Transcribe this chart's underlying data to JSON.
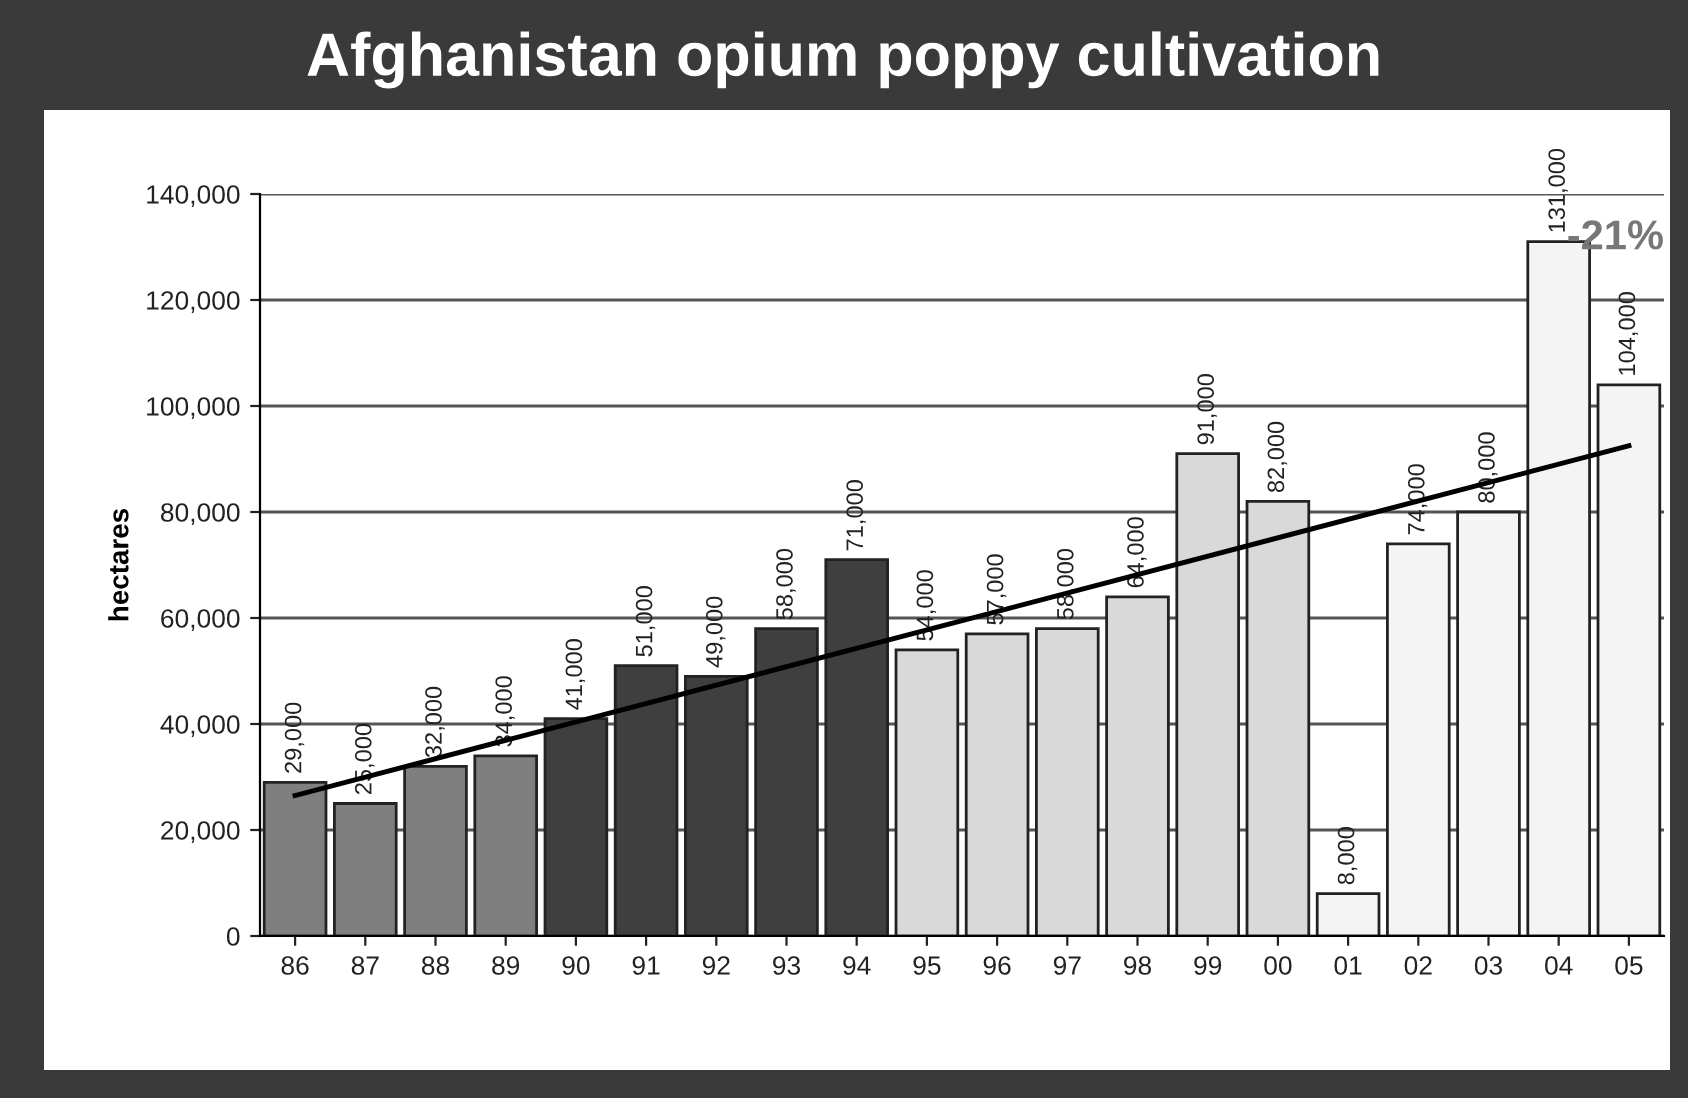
{
  "chart_data": {
    "type": "bar",
    "title": "Afghanistan opium poppy cultivation",
    "ylabel": "hectares",
    "categories": [
      "86",
      "87",
      "88",
      "89",
      "90",
      "91",
      "92",
      "93",
      "94",
      "95",
      "96",
      "97",
      "98",
      "99",
      "00",
      "01",
      "02",
      "03",
      "04",
      "05"
    ],
    "series": [
      {
        "value_labels": [
          "29,000",
          "25,000",
          "32,000",
          "34,000",
          "41,000",
          "51,000",
          "49,000",
          "58,000",
          "71,000",
          "54,000",
          "57,000",
          "58,000",
          "64,000",
          "91,000",
          "82,000",
          "8,000",
          "74,000",
          "80,000",
          "131,000",
          "104,000"
        ],
        "values": [
          29000,
          25000,
          32000,
          34000,
          41000,
          51000,
          49000,
          58000,
          71000,
          54000,
          57000,
          58000,
          64000,
          91000,
          82000,
          8000,
          74000,
          80000,
          131000,
          104000
        ],
        "colors": [
          "#7f7f7f",
          "#7f7f7f",
          "#7f7f7f",
          "#7f7f7f",
          "#3f3f3f",
          "#3f3f3f",
          "#3f3f3f",
          "#3f3f3f",
          "#3f3f3f",
          "#d9d9d9",
          "#d9d9d9",
          "#d9d9d9",
          "#d9d9d9",
          "#d9d9d9",
          "#d9d9d9",
          "#f4f4f4",
          "#f4f4f4",
          "#f4f4f4",
          "#f4f4f4",
          "#f4f4f4"
        ]
      },
      {
        "type": "line",
        "color": "#000000",
        "x": [
          "86",
          "05"
        ],
        "values": [
          26500,
          92500
        ]
      }
    ],
    "ylim": [
      0,
      140000
    ],
    "yticks": [
      0,
      {
        "value": 20000,
        "label": "20,000"
      },
      {
        "value": 40000,
        "label": "40,000"
      },
      {
        "value": 60000,
        "label": "60,000"
      },
      {
        "value": 80000,
        "label": "80,000"
      },
      {
        "value": 100000,
        "label": "100,000"
      },
      {
        "value": 120000,
        "label": "120,000"
      },
      {
        "value": 140000,
        "label": "140,000"
      }
    ],
    "grid": "y",
    "annotations": [
      "-21%"
    ]
  }
}
